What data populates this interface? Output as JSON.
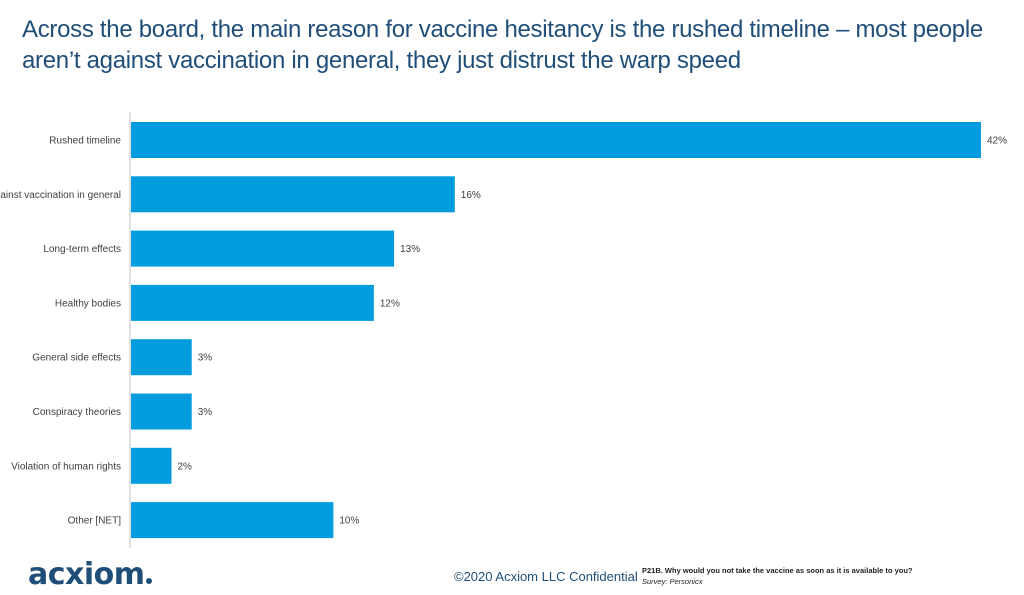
{
  "title": "Across the board, the main reason for vaccine hesitancy is the rushed timeline – most people aren’t against vaccination in general, they just distrust the warp speed",
  "colors": {
    "bar": "#009cde",
    "title": "#1f4e79",
    "axis": "#bfbfbf"
  },
  "chart_data": {
    "type": "bar",
    "orientation": "horizontal",
    "categories": [
      "Rushed timeline",
      "Against vaccination in general",
      "Long-term effects",
      "Healthy bodies",
      "General side effects",
      "Conspiracy theories",
      "Violation of human rights",
      "Other [NET]"
    ],
    "values": [
      42,
      16,
      13,
      12,
      3,
      3,
      2,
      10
    ],
    "value_labels": [
      "42%",
      "16%",
      "13%",
      "12%",
      "3%",
      "3%",
      "2%",
      "10%"
    ],
    "unit": "%",
    "xlim": [
      0,
      42
    ],
    "xlabel": "",
    "ylabel": ""
  },
  "footer": {
    "logo_text": "acxiom",
    "confidential": "©2020 Acxiom LLC Confidential",
    "question": "P21B. Why would you not take the vaccine as soon as it is available to you?",
    "source": "Survey: Personicx"
  }
}
